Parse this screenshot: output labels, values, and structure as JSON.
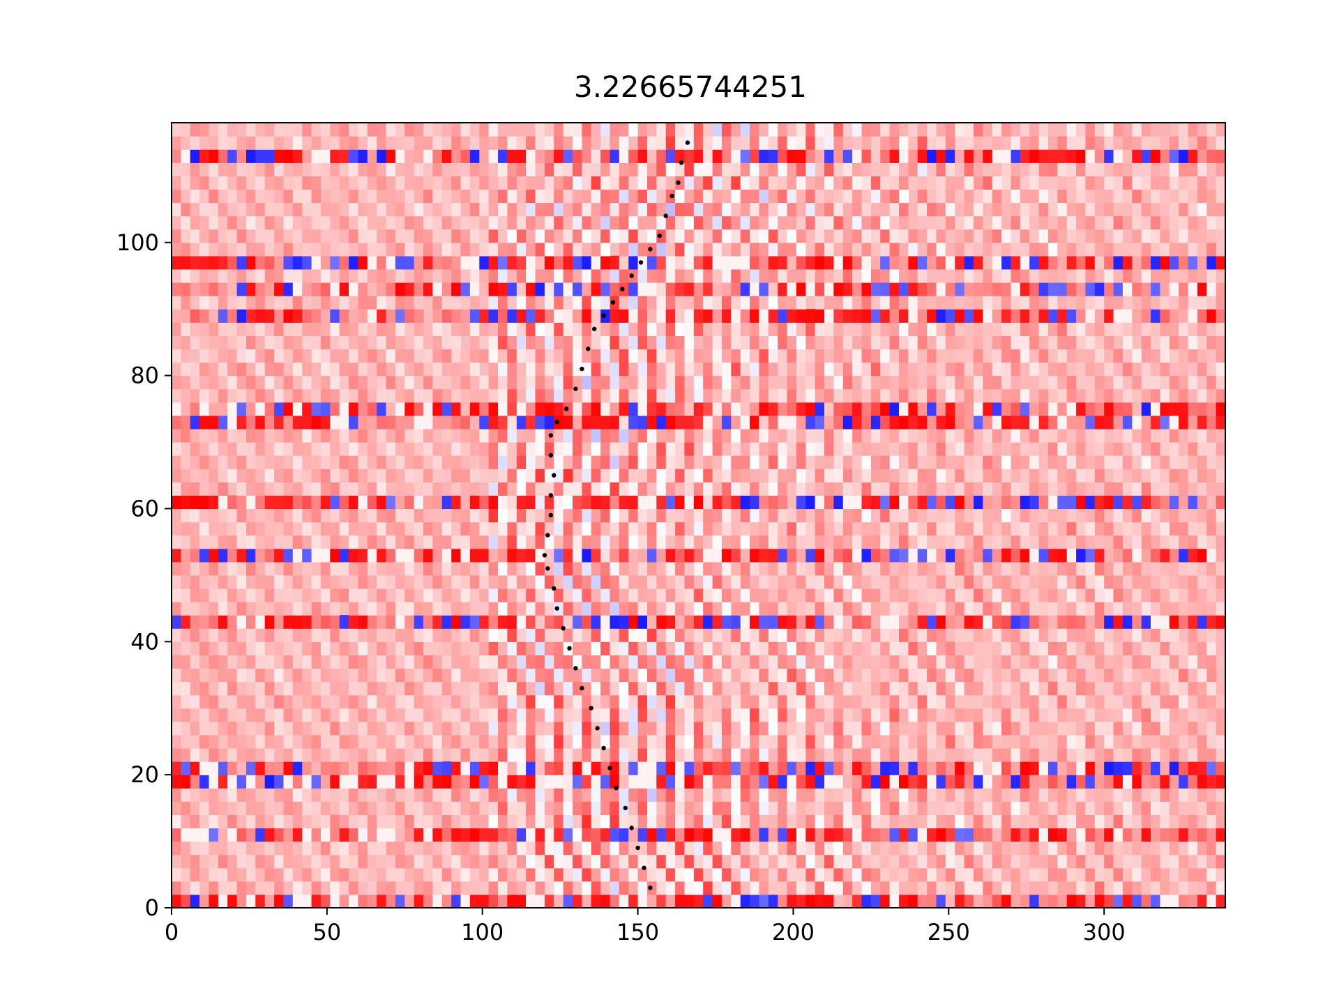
{
  "chart_data": {
    "type": "heatmap",
    "title": "3.22665744251",
    "xlabel": "",
    "ylabel": "",
    "xlim": [
      0,
      339
    ],
    "ylim": [
      0,
      118
    ],
    "xticks": [
      0,
      50,
      100,
      150,
      200,
      250,
      300
    ],
    "yticks": [
      0,
      20,
      40,
      60,
      80,
      100
    ],
    "grid": false,
    "colormap": "bwr",
    "colors": {
      "low": "#0000ff",
      "mid": "#ffffff",
      "high": "#ff0000",
      "background": "#f7bcbc",
      "pick": "#000000"
    },
    "noisy_rows": [
      1,
      10,
      19,
      21,
      43,
      52,
      61,
      72,
      75,
      89,
      93,
      96,
      113
    ],
    "picks": {
      "name": "",
      "points": [
        [
          154,
          3
        ],
        [
          152,
          6
        ],
        [
          150,
          9
        ],
        [
          148,
          12
        ],
        [
          146,
          15
        ],
        [
          143,
          18
        ],
        [
          141,
          21
        ],
        [
          139,
          24
        ],
        [
          137,
          27
        ],
        [
          135,
          30
        ],
        [
          132,
          33
        ],
        [
          130,
          36
        ],
        [
          128,
          39
        ],
        [
          126,
          42
        ],
        [
          124,
          45
        ],
        [
          123,
          48
        ],
        [
          121,
          51
        ],
        [
          120,
          53
        ],
        [
          121,
          56
        ],
        [
          122,
          59
        ],
        [
          122,
          62
        ],
        [
          123,
          65
        ],
        [
          122,
          68
        ],
        [
          122,
          71
        ],
        [
          124,
          73
        ],
        [
          127,
          75
        ],
        [
          130,
          78
        ],
        [
          132,
          81
        ],
        [
          134,
          84
        ],
        [
          136,
          87
        ],
        [
          139,
          89
        ],
        [
          142,
          91
        ],
        [
          145,
          93
        ],
        [
          148,
          95
        ],
        [
          151,
          97
        ],
        [
          154,
          99
        ],
        [
          157,
          101
        ],
        [
          159,
          104
        ],
        [
          161,
          107
        ],
        [
          163,
          109
        ],
        [
          164,
          112
        ],
        [
          166,
          115
        ]
      ]
    }
  }
}
